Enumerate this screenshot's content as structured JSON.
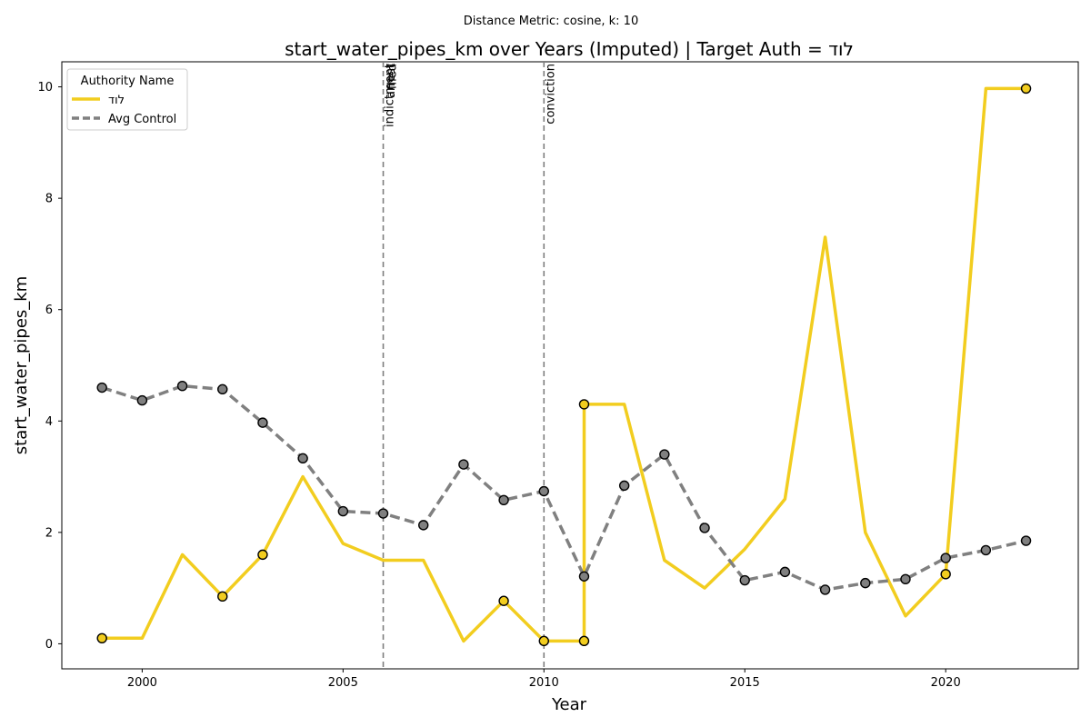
{
  "chart_data": {
    "type": "line",
    "suptitle": "Distance Metric: cosine, k: 10",
    "title": "start_water_pipes_km over Years (Imputed) | Target Auth = לוד",
    "xlabel": "Year",
    "ylabel": "start_water_pipes_km",
    "xlim": [
      1998,
      2023.3
    ],
    "ylim": [
      -0.45,
      10.45
    ],
    "x_ticks": [
      2000,
      2005,
      2010,
      2015,
      2020
    ],
    "y_ticks": [
      0,
      2,
      4,
      6,
      8,
      10
    ],
    "grid": false,
    "legend": {
      "title": "Authority Name",
      "placement": "top-left"
    },
    "events": [
      {
        "x": 2006,
        "label": "indictment"
      },
      {
        "x": 2006,
        "label": "arrest"
      },
      {
        "x": 2006,
        "label": "filed"
      },
      {
        "x": 2010,
        "label": "conviction"
      }
    ],
    "series": [
      {
        "name": "לוד",
        "color": "#f2cd1f",
        "style": "solid",
        "points": [
          [
            1999,
            0.1
          ],
          [
            2000,
            0.1
          ],
          [
            2001,
            1.6
          ],
          [
            2002,
            0.85
          ],
          [
            2003,
            1.6
          ],
          [
            2004,
            3.0
          ],
          [
            2005,
            1.8
          ],
          [
            2006,
            1.5
          ],
          [
            2007,
            1.5
          ],
          [
            2008,
            0.05
          ],
          [
            2009,
            0.77
          ],
          [
            2010,
            0.05
          ],
          [
            2011,
            0.05
          ],
          [
            2011,
            4.3
          ],
          [
            2012,
            4.3
          ],
          [
            2013,
            1.5
          ],
          [
            2014,
            1.0
          ],
          [
            2015,
            1.7
          ],
          [
            2016,
            2.6
          ],
          [
            2017,
            7.3
          ],
          [
            2018,
            2.0
          ],
          [
            2019,
            0.5
          ],
          [
            2020,
            1.25
          ],
          [
            2021,
            9.97
          ],
          [
            2022,
            9.97
          ]
        ],
        "marked_points": [
          [
            1999,
            0.1
          ],
          [
            2002,
            0.85
          ],
          [
            2003,
            1.6
          ],
          [
            2009,
            0.77
          ],
          [
            2010,
            0.05
          ],
          [
            2011,
            0.05
          ],
          [
            2011,
            4.3
          ],
          [
            2020,
            1.25
          ],
          [
            2022,
            9.97
          ]
        ]
      },
      {
        "name": "Avg Control",
        "color": "#808080",
        "style": "dashed",
        "points": [
          [
            1999,
            4.6
          ],
          [
            2000,
            4.37
          ],
          [
            2001,
            4.63
          ],
          [
            2002,
            4.57
          ],
          [
            2003,
            3.97
          ],
          [
            2004,
            3.33
          ],
          [
            2005,
            2.38
          ],
          [
            2006,
            2.34
          ],
          [
            2007,
            2.13
          ],
          [
            2008,
            3.22
          ],
          [
            2009,
            2.58
          ],
          [
            2010,
            2.74
          ],
          [
            2011,
            1.21
          ],
          [
            2012,
            2.84
          ],
          [
            2013,
            3.4
          ],
          [
            2014,
            2.08
          ],
          [
            2015,
            1.14
          ],
          [
            2016,
            1.29
          ],
          [
            2017,
            0.97
          ],
          [
            2018,
            1.09
          ],
          [
            2019,
            1.16
          ],
          [
            2020,
            1.54
          ],
          [
            2021,
            1.68
          ],
          [
            2022,
            1.85
          ]
        ],
        "marked_points": [
          [
            1999,
            4.6
          ],
          [
            2000,
            4.37
          ],
          [
            2001,
            4.63
          ],
          [
            2002,
            4.57
          ],
          [
            2003,
            3.97
          ],
          [
            2004,
            3.33
          ],
          [
            2005,
            2.38
          ],
          [
            2006,
            2.34
          ],
          [
            2007,
            2.13
          ],
          [
            2008,
            3.22
          ],
          [
            2009,
            2.58
          ],
          [
            2010,
            2.74
          ],
          [
            2011,
            1.21
          ],
          [
            2012,
            2.84
          ],
          [
            2013,
            3.4
          ],
          [
            2014,
            2.08
          ],
          [
            2015,
            1.14
          ],
          [
            2016,
            1.29
          ],
          [
            2017,
            0.97
          ],
          [
            2018,
            1.09
          ],
          [
            2019,
            1.16
          ],
          [
            2020,
            1.54
          ],
          [
            2021,
            1.68
          ],
          [
            2022,
            1.85
          ]
        ]
      }
    ]
  }
}
